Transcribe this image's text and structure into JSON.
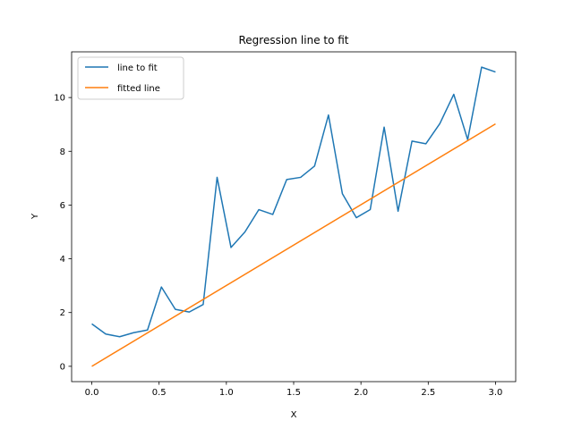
{
  "chart_data": {
    "type": "line",
    "title": "Regression line to fit",
    "xlabel": "X",
    "ylabel": "Y",
    "xlim": [
      -0.15,
      3.15
    ],
    "ylim": [
      -0.57,
      11.7
    ],
    "xticks": [
      0.0,
      0.5,
      1.0,
      1.5,
      2.0,
      2.5,
      3.0
    ],
    "xtick_labels": [
      "0.0",
      "0.5",
      "1.0",
      "1.5",
      "2.0",
      "2.5",
      "3.0"
    ],
    "yticks": [
      0,
      2,
      4,
      6,
      8,
      10
    ],
    "ytick_labels": [
      "0",
      "2",
      "4",
      "6",
      "8",
      "10"
    ],
    "grid": false,
    "legend_position": "top-left",
    "series": [
      {
        "name": "line to fit",
        "color": "#1f77b4",
        "x": [
          0.0,
          0.1034,
          0.2069,
          0.3103,
          0.4138,
          0.5172,
          0.6207,
          0.7241,
          0.8276,
          0.931,
          1.0345,
          1.1379,
          1.2414,
          1.3448,
          1.4483,
          1.5517,
          1.6552,
          1.7586,
          1.8621,
          1.9655,
          2.069,
          2.1724,
          2.2759,
          2.3793,
          2.4828,
          2.5862,
          2.6897,
          2.7931,
          2.8966,
          3.0
        ],
        "y": [
          1.58,
          1.2,
          1.1,
          1.25,
          1.35,
          2.95,
          2.12,
          2.02,
          2.3,
          7.03,
          4.42,
          5.0,
          5.83,
          5.65,
          6.95,
          7.03,
          7.45,
          9.35,
          6.42,
          5.53,
          5.83,
          8.9,
          5.77,
          8.38,
          8.28,
          9.03,
          10.12,
          8.43,
          11.13,
          10.95
        ]
      },
      {
        "name": "fitted line",
        "color": "#ff7f0e",
        "x": [
          0.0,
          3.0
        ],
        "y": [
          0.0,
          9.02
        ]
      }
    ]
  }
}
